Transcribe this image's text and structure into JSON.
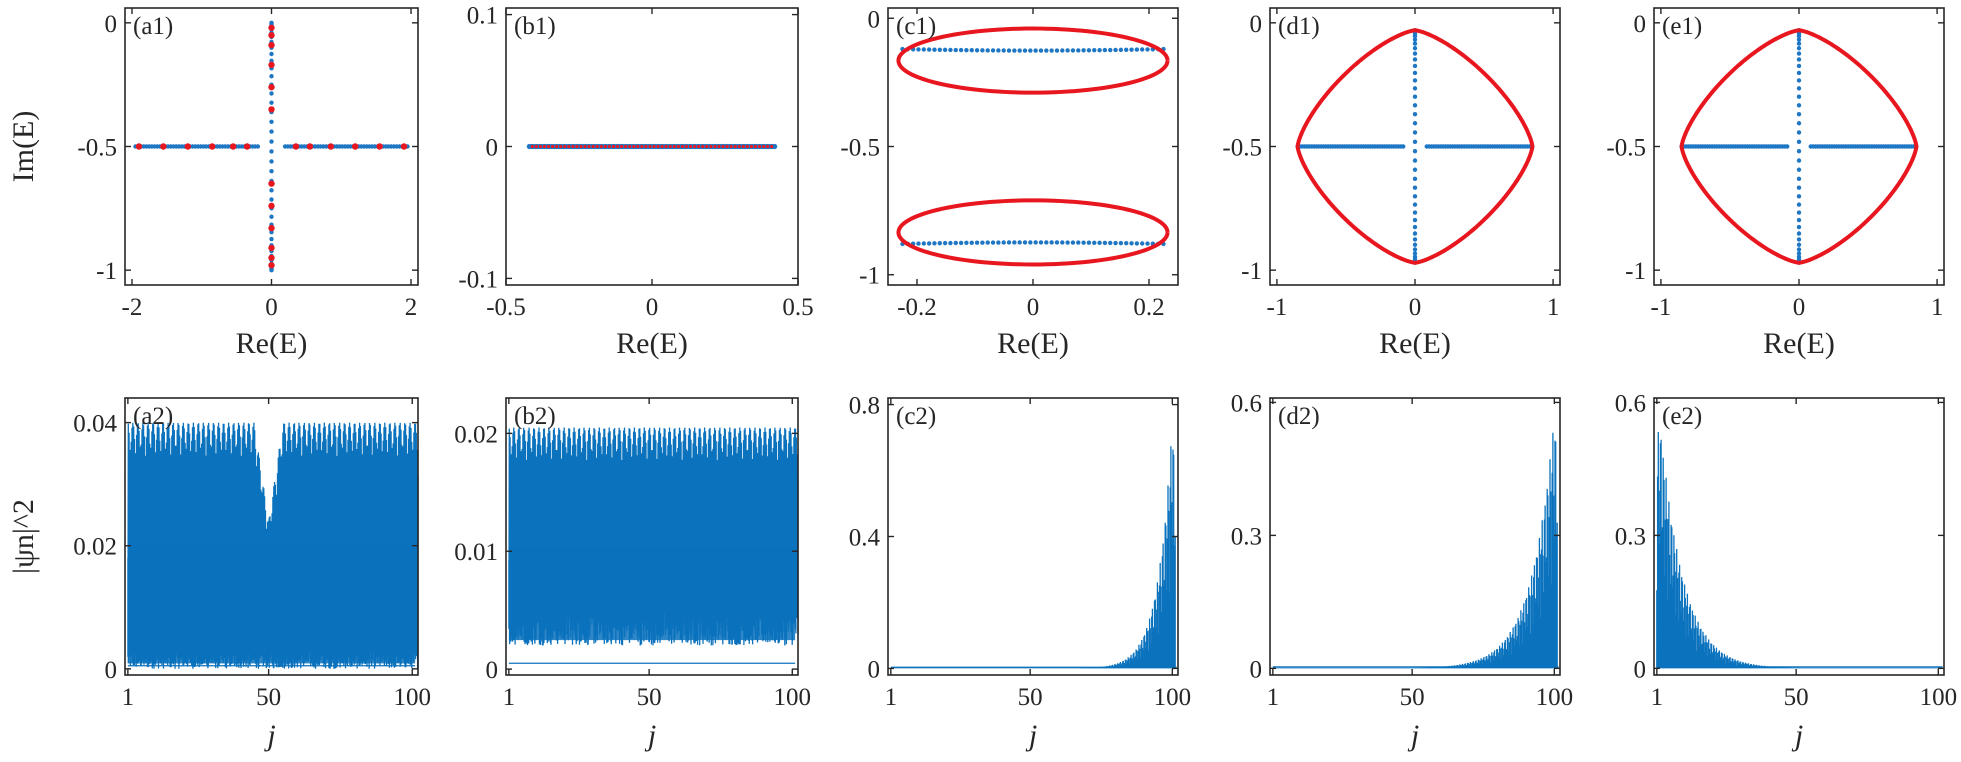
{
  "colors": {
    "blue": "#1f77c4",
    "red": "#e8171f",
    "fill": "#0b72bd",
    "axis": "#262626"
  },
  "chart_data": [
    {
      "type": "scatter",
      "id": "a1",
      "panel_label": "(a1)",
      "xlabel": "Re(E)",
      "ylabel": "Im(E)",
      "xlim": [
        -2.1,
        2.1
      ],
      "ylim": [
        -1.06,
        0.06
      ],
      "xticks": [
        -2,
        0,
        2
      ],
      "xtick_labels": [
        "-2",
        "0",
        "2"
      ],
      "yticks": [
        -1,
        -0.5,
        0
      ],
      "ytick_labels": [
        "-1",
        "-0.5",
        "0"
      ],
      "series": [
        {
          "role": "spectrum",
          "color": "#1f77c4",
          "marker": "dot",
          "shape": "cross",
          "x_range": [
            -1.95,
            1.95
          ],
          "y_level": -0.5,
          "y_range": [
            -1,
            0
          ],
          "n": 101
        },
        {
          "role": "highlighted",
          "color": "#e8171f",
          "marker": "dot",
          "points": [
            [
              -1.9,
              -0.5
            ],
            [
              -1.55,
              -0.5
            ],
            [
              -1.2,
              -0.5
            ],
            [
              -0.85,
              -0.5
            ],
            [
              -0.55,
              -0.5
            ],
            [
              -0.35,
              -0.5
            ],
            [
              0.35,
              -0.5
            ],
            [
              0.55,
              -0.5
            ],
            [
              0.85,
              -0.5
            ],
            [
              1.2,
              -0.5
            ],
            [
              1.55,
              -0.5
            ],
            [
              1.9,
              -0.5
            ],
            [
              0,
              -0.02
            ],
            [
              0,
              -0.05
            ],
            [
              0,
              -0.09
            ],
            [
              0,
              -0.17
            ],
            [
              0,
              -0.26
            ],
            [
              0,
              -0.35
            ],
            [
              0,
              -0.65
            ],
            [
              0,
              -0.74
            ],
            [
              0,
              -0.83
            ],
            [
              0,
              -0.91
            ],
            [
              0,
              -0.95
            ],
            [
              0,
              -0.98
            ]
          ]
        }
      ]
    },
    {
      "type": "scatter",
      "id": "b1",
      "panel_label": "(b1)",
      "xlabel": "Re(E)",
      "ylabel": "",
      "xlim": [
        -0.5,
        0.5
      ],
      "ylim": [
        -0.105,
        0.105
      ],
      "xticks": [
        -0.5,
        0,
        0.5
      ],
      "xtick_labels": [
        "-0.5",
        "0",
        "0.5"
      ],
      "yticks": [
        -0.1,
        0,
        0.1
      ],
      "ytick_labels": [
        "-0.1",
        "0",
        "0.1"
      ],
      "series": [
        {
          "role": "spectrum",
          "color": "#1f77c4",
          "marker": "dot",
          "shape": "line",
          "x_range": [
            -0.42,
            0.42
          ],
          "y_level": 0,
          "n": 100
        },
        {
          "role": "highlighted",
          "color": "#e8171f",
          "marker": "dot",
          "shape": "line",
          "x_range": [
            -0.41,
            0.41
          ],
          "y_level": 0,
          "n": 60
        }
      ]
    },
    {
      "type": "scatter",
      "id": "c1",
      "panel_label": "(c1)",
      "xlabel": "Re(E)",
      "ylabel": "",
      "xlim": [
        -0.25,
        0.25
      ],
      "ylim": [
        -1.04,
        0.04
      ],
      "xticks": [
        -0.2,
        0,
        0.2
      ],
      "xtick_labels": [
        "-0.2",
        "0",
        "0.2"
      ],
      "yticks": [
        -1,
        -0.5,
        0
      ],
      "ytick_labels": [
        "-1",
        "-0.5",
        "0"
      ],
      "series": [
        {
          "role": "spectrum",
          "color": "#1f77c4",
          "marker": "dot",
          "shape": "two-bands",
          "x_range": [
            -0.225,
            0.225
          ],
          "bands": [
            {
              "y_level": -0.12,
              "bulge": -0.006
            },
            {
              "y_level": -0.88,
              "bulge": 0.006
            }
          ],
          "n": 50
        },
        {
          "role": "loop",
          "color": "#e8171f",
          "marker": "curve",
          "shape": "ellipses",
          "ellipses": [
            {
              "center": [
                0,
                -0.165
              ],
              "rx": 0.232,
              "ry_top": 0.125,
              "ry_bottom": 0.125
            },
            {
              "center": [
                0,
                -0.835
              ],
              "rx": 0.232,
              "ry_top": 0.125,
              "ry_bottom": 0.125
            }
          ]
        }
      ]
    },
    {
      "type": "scatter",
      "id": "d1",
      "panel_label": "(d1)",
      "xlabel": "Re(E)",
      "ylabel": "",
      "xlim": [
        -1.05,
        1.05
      ],
      "ylim": [
        -1.06,
        0.06
      ],
      "xticks": [
        -1,
        0,
        1
      ],
      "xtick_labels": [
        "-1",
        "0",
        "1"
      ],
      "yticks": [
        -1,
        -0.5,
        0
      ],
      "ytick_labels": [
        "-1",
        "-0.5",
        "0"
      ],
      "series": [
        {
          "role": "spectrum",
          "color": "#1f77c4",
          "marker": "dot",
          "shape": "cross",
          "x_range": [
            -0.85,
            0.85
          ],
          "y_level": -0.5,
          "y_range": [
            -0.97,
            -0.03
          ],
          "n": 101
        },
        {
          "role": "loop",
          "color": "#e8171f",
          "marker": "curve",
          "shape": "astroid",
          "x_half": 0.85,
          "y_half": 0.47,
          "center": [
            0,
            -0.5
          ]
        }
      ]
    },
    {
      "type": "scatter",
      "id": "e1",
      "panel_label": "(e1)",
      "xlabel": "Re(E)",
      "ylabel": "",
      "xlim": [
        -1.05,
        1.05
      ],
      "ylim": [
        -1.06,
        0.06
      ],
      "xticks": [
        -1,
        0,
        1
      ],
      "xtick_labels": [
        "-1",
        "0",
        "1"
      ],
      "yticks": [
        -1,
        -0.5,
        0
      ],
      "ytick_labels": [
        "-1",
        "-0.5",
        "0"
      ],
      "series": [
        {
          "role": "spectrum",
          "color": "#1f77c4",
          "marker": "dot",
          "shape": "cross",
          "x_range": [
            -0.85,
            0.85
          ],
          "y_level": -0.5,
          "y_range": [
            -0.97,
            -0.03
          ],
          "n": 101
        },
        {
          "role": "loop",
          "color": "#e8171f",
          "marker": "curve",
          "shape": "astroid",
          "x_half": 0.85,
          "y_half": 0.47,
          "center": [
            0,
            -0.5
          ]
        }
      ]
    },
    {
      "type": "area",
      "id": "a2",
      "panel_label": "(a2)",
      "xlabel": "j",
      "ylabel": "|ψn|^2",
      "xlim": [
        0,
        102
      ],
      "ylim": [
        -0.001,
        0.044
      ],
      "xticks": [
        1,
        50,
        100
      ],
      "xtick_labels": [
        "1",
        "50",
        "100"
      ],
      "yticks": [
        0,
        0.02,
        0.04
      ],
      "ytick_labels": [
        "0",
        "0.02",
        "0.04"
      ],
      "profile": "extended",
      "envelope": [
        [
          1,
          0.04
        ],
        [
          45,
          0.04
        ],
        [
          50,
          0.024
        ],
        [
          55,
          0.04
        ],
        [
          102,
          0.04
        ]
      ],
      "floor": 0
    },
    {
      "type": "area",
      "id": "b2",
      "panel_label": "(b2)",
      "xlabel": "j",
      "ylabel": "",
      "xlim": [
        0,
        102
      ],
      "ylim": [
        -0.0005,
        0.023
      ],
      "xticks": [
        1,
        50,
        100
      ],
      "xtick_labels": [
        "1",
        "50",
        "100"
      ],
      "yticks": [
        0,
        0.01,
        0.02
      ],
      "ytick_labels": [
        "0",
        "0.01",
        "0.02"
      ],
      "profile": "extended",
      "envelope": [
        [
          1,
          0.0205
        ],
        [
          102,
          0.0205
        ]
      ],
      "floor": 0.002
    },
    {
      "type": "area",
      "id": "c2",
      "panel_label": "(c2)",
      "xlabel": "j",
      "ylabel": "",
      "xlim": [
        0,
        102
      ],
      "ylim": [
        -0.02,
        0.82
      ],
      "xticks": [
        1,
        50,
        100
      ],
      "xtick_labels": [
        "1",
        "50",
        "100"
      ],
      "yticks": [
        0,
        0.4,
        0.8
      ],
      "ytick_labels": [
        "0",
        "0.4",
        "0.8"
      ],
      "profile": "right-skin",
      "peak": 0.75,
      "peak_j": 100,
      "decay": 5
    },
    {
      "type": "area",
      "id": "d2",
      "panel_label": "(d2)",
      "xlabel": "j",
      "ylabel": "",
      "xlim": [
        0,
        102
      ],
      "ylim": [
        -0.015,
        0.61
      ],
      "xticks": [
        1,
        50,
        100
      ],
      "xtick_labels": [
        "1",
        "50",
        "100"
      ],
      "yticks": [
        0,
        0.3,
        0.6
      ],
      "ytick_labels": [
        "0",
        "0.3",
        "0.6"
      ],
      "profile": "right-skin",
      "peak": 0.57,
      "peak_j": 100,
      "decay": 8
    },
    {
      "type": "area",
      "id": "e2",
      "panel_label": "(e2)",
      "xlabel": "j",
      "ylabel": "",
      "xlim": [
        0,
        102
      ],
      "ylim": [
        -0.015,
        0.61
      ],
      "xticks": [
        1,
        50,
        100
      ],
      "xtick_labels": [
        "1",
        "50",
        "100"
      ],
      "yticks": [
        0,
        0.3,
        0.6
      ],
      "ytick_labels": [
        "0",
        "0.3",
        "0.6"
      ],
      "profile": "left-skin",
      "peak": 0.57,
      "peak_j": 2,
      "decay": 8
    }
  ]
}
